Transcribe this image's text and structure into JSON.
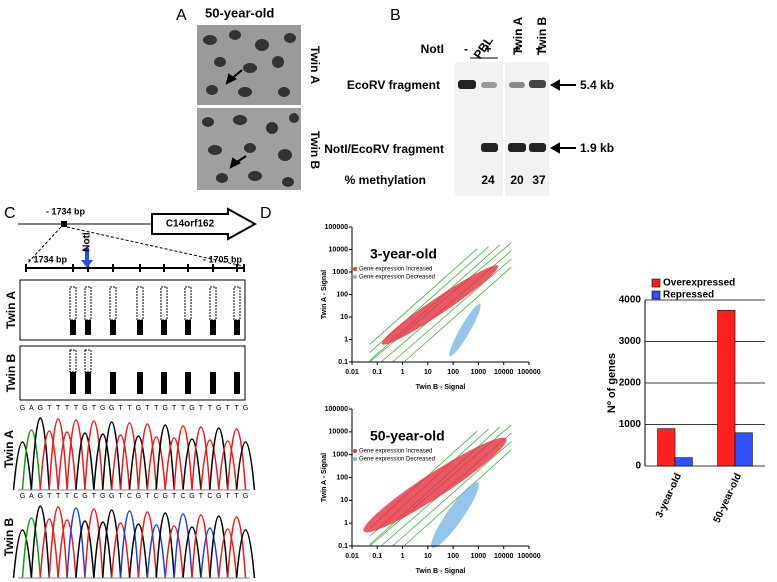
{
  "panel_a": {
    "label": "A",
    "title": "50-year-old",
    "rows": [
      "Twin A",
      "Twin B"
    ]
  },
  "panel_b": {
    "label": "B",
    "group": "PBL",
    "lanes": [
      "Twin A",
      "Twin B"
    ],
    "enzyme": "NotI",
    "signs": [
      "-",
      "+",
      "+",
      "+"
    ],
    "bands": [
      {
        "name": "EcoRV fragment",
        "size": "5.4 kb"
      },
      {
        "name": "NotI/EcoRV fragment",
        "size": "1.9 kb"
      }
    ],
    "methylation_label": "% methylation",
    "methylation": [
      24,
      20,
      37
    ]
  },
  "panel_c": {
    "label": "C",
    "position": "- 1734 bp",
    "gene": "C14orf162",
    "site": "NotI",
    "start": "- 1734 bp",
    "end": "- 1705 bp",
    "rows": [
      "Twin A",
      "Twin B"
    ],
    "sequences": [
      {
        "name": "Twin A",
        "bases": "GAGTTTTGTGGTTGTTGTTGTTGTTG"
      },
      {
        "name": "Twin B",
        "bases": "GAGTTTCGTGGTCGTCGTCGTCGTTG"
      }
    ]
  },
  "panel_d": {
    "label": "D",
    "scatter": [
      {
        "title": "3-year-old",
        "legend": [
          "Gene expression Increased",
          "Gene expression Decreased"
        ],
        "x_label": "Twin B - Signal",
        "y_label": "Twin A - Signal"
      },
      {
        "title": "50-year-old",
        "legend": [
          "Gene expression Increased",
          "Gene expression Decreased"
        ],
        "x_label": "Twin B - Signal",
        "y_label": "Twin A - Signal"
      }
    ],
    "log_scale": true,
    "xlim": [
      0.01,
      100000
    ],
    "xticks": [
      0.01,
      0.1,
      1,
      10,
      100,
      1000,
      10000,
      100000
    ],
    "ylim": [
      0.1,
      100000
    ],
    "yticks": [
      0.1,
      1,
      10,
      100,
      1000,
      10000,
      100000
    ]
  },
  "chart_data": {
    "type": "bar",
    "categories": [
      "3-year-old",
      "50-year-old"
    ],
    "series": [
      {
        "name": "Overexpressed",
        "color": "#ff2020",
        "values": [
          900,
          3750
        ]
      },
      {
        "name": "Repressed",
        "color": "#3050ff",
        "values": [
          200,
          800
        ]
      }
    ],
    "y_label": "Nº of genes",
    "ylim": [
      0,
      4000
    ],
    "yticks": [
      0,
      1000,
      2000,
      3000,
      4000
    ],
    "grid": true
  }
}
